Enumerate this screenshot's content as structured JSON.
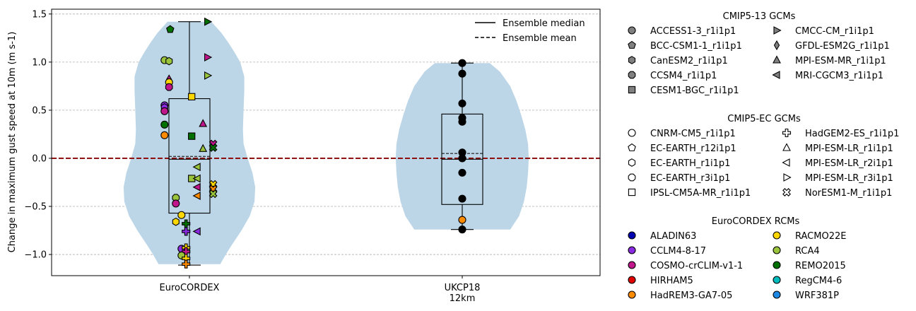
{
  "chart_data": {
    "type": "violin",
    "ylabel": "Change in maximum gust speed at 10m (m s-1)",
    "ylim": [
      -1.22,
      1.55
    ],
    "yticks": [
      -1.0,
      -0.5,
      0.0,
      0.5,
      1.0,
      1.5
    ],
    "ytick_labels": [
      "−1.0",
      "−0.5",
      "0.0",
      "0.5",
      "1.0",
      "1.5"
    ],
    "grid": "y-dashed",
    "reference_line": {
      "y": 0.0,
      "color": "#8b0000",
      "style": "dashed"
    },
    "categories": [
      {
        "label_lines": [
          "EuroCORDEX"
        ]
      },
      {
        "label_lines": [
          "UKCP18",
          "12km"
        ]
      }
    ],
    "legend_top": {
      "placement": "top-right",
      "entries": [
        {
          "label": "Ensemble median",
          "style": "solid"
        },
        {
          "label": "Ensemble mean",
          "style": "dashed"
        }
      ]
    },
    "violin_color": "#bcd6e8",
    "series": [
      {
        "category": "EuroCORDEX",
        "min": -1.11,
        "max": 1.42,
        "q1": -0.57,
        "q3": 0.62,
        "median": -0.01,
        "mean": 0.02,
        "violin_profile": [
          [
            -1.1,
            0.45
          ],
          [
            -1.0,
            0.53
          ],
          [
            -0.9,
            0.62
          ],
          [
            -0.75,
            0.76
          ],
          [
            -0.6,
            0.88
          ],
          [
            -0.45,
            0.95
          ],
          [
            -0.3,
            0.96
          ],
          [
            -0.15,
            0.92
          ],
          [
            0.0,
            0.85
          ],
          [
            0.15,
            0.79
          ],
          [
            0.3,
            0.78
          ],
          [
            0.5,
            0.79
          ],
          [
            0.7,
            0.8
          ],
          [
            0.85,
            0.8
          ],
          [
            1.0,
            0.74
          ],
          [
            1.1,
            0.66
          ],
          [
            1.2,
            0.57
          ],
          [
            1.3,
            0.47
          ],
          [
            1.42,
            0.32
          ]
        ],
        "points": [
          {
            "y": 1.34,
            "dx": -0.17,
            "marker": "pentagon",
            "color": "#007000"
          },
          {
            "y": 1.02,
            "dx": -0.22,
            "marker": "circle",
            "color": "#9ac43c"
          },
          {
            "y": 1.01,
            "dx": -0.18,
            "marker": "hexagon",
            "color": "#9ac43c"
          },
          {
            "y": 0.82,
            "dx": -0.18,
            "marker": "thin_diamond",
            "color": "#c0168c"
          },
          {
            "y": 0.79,
            "dx": -0.18,
            "marker": "circle",
            "color": "#ffd700"
          },
          {
            "y": 0.74,
            "dx": -0.18,
            "marker": "octagon",
            "color": "#c0168c"
          },
          {
            "y": 0.55,
            "dx": -0.22,
            "marker": "circle",
            "color": "#8a2be2"
          },
          {
            "y": 0.53,
            "dx": -0.22,
            "marker": "hexagon",
            "color": "#8a2be2"
          },
          {
            "y": 0.49,
            "dx": -0.22,
            "marker": "circle",
            "color": "#c0168c"
          },
          {
            "y": 0.35,
            "dx": -0.22,
            "marker": "circle",
            "color": "#007000"
          },
          {
            "y": 0.24,
            "dx": -0.22,
            "marker": "circle",
            "color": "#ff8c00"
          },
          {
            "y": 0.64,
            "dx": 0.02,
            "marker": "square",
            "color": "#ffd700"
          },
          {
            "y": 0.23,
            "dx": 0.02,
            "marker": "square",
            "color": "#007000"
          },
          {
            "y": -0.21,
            "dx": 0.02,
            "marker": "square",
            "color": "#9ac43c"
          },
          {
            "y": 1.42,
            "dx": 0.16,
            "marker": "tri_right",
            "color": "#007000"
          },
          {
            "y": 1.05,
            "dx": 0.16,
            "marker": "tri_right",
            "color": "#c0168c"
          },
          {
            "y": 0.86,
            "dx": 0.16,
            "marker": "tri_right",
            "color": "#9ac43c"
          },
          {
            "y": 0.36,
            "dx": 0.12,
            "marker": "tri_up",
            "color": "#c0168c"
          },
          {
            "y": 0.1,
            "dx": 0.12,
            "marker": "tri_up",
            "color": "#9ac43c"
          },
          {
            "y": -0.09,
            "dx": 0.07,
            "marker": "tri_left",
            "color": "#9ac43c"
          },
          {
            "y": -0.21,
            "dx": 0.07,
            "marker": "tri_left",
            "color": "#9ac43c"
          },
          {
            "y": -0.3,
            "dx": 0.07,
            "marker": "tri_left",
            "color": "#c0168c"
          },
          {
            "y": -0.39,
            "dx": 0.07,
            "marker": "tri_left",
            "color": "#ff8c00"
          },
          {
            "y": -0.76,
            "dx": 0.07,
            "marker": "tri_left",
            "color": "#8a2be2"
          },
          {
            "y": 0.15,
            "dx": 0.21,
            "marker": "cross",
            "color": "#c0168c"
          },
          {
            "y": 0.11,
            "dx": 0.21,
            "marker": "cross",
            "color": "#007000"
          },
          {
            "y": -0.27,
            "dx": 0.21,
            "marker": "cross",
            "color": "#ffd700"
          },
          {
            "y": -0.32,
            "dx": 0.21,
            "marker": "cross",
            "color": "#ff8c00"
          },
          {
            "y": -0.37,
            "dx": 0.21,
            "marker": "cross",
            "color": "#9ac43c"
          },
          {
            "y": -0.41,
            "dx": -0.12,
            "marker": "octagon",
            "color": "#9ac43c"
          },
          {
            "y": -0.47,
            "dx": -0.12,
            "marker": "circle",
            "color": "#c0168c"
          },
          {
            "y": -0.59,
            "dx": -0.07,
            "marker": "circle",
            "color": "#ffd700"
          },
          {
            "y": -0.66,
            "dx": -0.12,
            "marker": "hexagon",
            "color": "#ffd700"
          },
          {
            "y": -0.68,
            "dx": -0.03,
            "marker": "plus",
            "color": "#007000"
          },
          {
            "y": -0.76,
            "dx": -0.03,
            "marker": "plus",
            "color": "#8a2be2"
          },
          {
            "y": -0.94,
            "dx": -0.07,
            "marker": "circle",
            "color": "#8a2be2"
          },
          {
            "y": -0.93,
            "dx": -0.03,
            "marker": "plus",
            "color": "#ffd700"
          },
          {
            "y": -0.97,
            "dx": -0.03,
            "marker": "plus",
            "color": "#c0168c"
          },
          {
            "y": -1.01,
            "dx": -0.07,
            "marker": "circle",
            "color": "#9ac43c"
          },
          {
            "y": -1.04,
            "dx": -0.03,
            "marker": "plus",
            "color": "#ffd700"
          },
          {
            "y": -1.1,
            "dx": -0.03,
            "marker": "plus",
            "color": "#ff8c00"
          }
        ]
      },
      {
        "category": "UKCP18 12km",
        "min": -0.74,
        "max": 0.99,
        "q1": -0.48,
        "q3": 0.46,
        "median": -0.01,
        "mean": 0.05,
        "violin_profile": [
          [
            -0.74,
            0.7
          ],
          [
            -0.6,
            0.83
          ],
          [
            -0.45,
            0.9
          ],
          [
            -0.3,
            0.94
          ],
          [
            -0.15,
            0.96
          ],
          [
            0.0,
            0.97
          ],
          [
            0.15,
            0.96
          ],
          [
            0.3,
            0.92
          ],
          [
            0.45,
            0.86
          ],
          [
            0.6,
            0.79
          ],
          [
            0.75,
            0.7
          ],
          [
            0.9,
            0.55
          ],
          [
            0.99,
            0.4
          ]
        ],
        "points": [
          {
            "y": 0.99,
            "dx": 0,
            "marker": "circle",
            "color": "#000000"
          },
          {
            "y": 0.88,
            "dx": 0,
            "marker": "circle",
            "color": "#000000"
          },
          {
            "y": 0.57,
            "dx": 0,
            "marker": "circle",
            "color": "#000000"
          },
          {
            "y": 0.42,
            "dx": 0,
            "marker": "circle",
            "color": "#000000"
          },
          {
            "y": 0.38,
            "dx": 0,
            "marker": "circle",
            "color": "#000000"
          },
          {
            "y": 0.06,
            "dx": 0,
            "marker": "circle",
            "color": "#000000"
          },
          {
            "y": 0.0,
            "dx": 0,
            "marker": "circle",
            "color": "#000000"
          },
          {
            "y": -0.15,
            "dx": 0,
            "marker": "circle",
            "color": "#000000"
          },
          {
            "y": -0.42,
            "dx": 0,
            "marker": "circle",
            "color": "#000000"
          },
          {
            "y": -0.64,
            "dx": 0,
            "marker": "circle",
            "color": "#ff8c00"
          },
          {
            "y": -0.74,
            "dx": 0,
            "marker": "circle",
            "color": "#000000"
          }
        ]
      }
    ],
    "legend_groups": [
      {
        "title": "CMIP5-13 GCMs",
        "marker_fill": "#808080",
        "entries": [
          {
            "label": "ACCESS1-3_r1i1p1",
            "marker": "circle"
          },
          {
            "label": "BCC-CSM1-1_r1i1p1",
            "marker": "pentagon"
          },
          {
            "label": "CanESM2_r1i1p1",
            "marker": "hexagon"
          },
          {
            "label": "CCSM4_r1i1p1",
            "marker": "octagon"
          },
          {
            "label": "CESM1-BGC_r1i1p1",
            "marker": "square"
          },
          {
            "label": "CMCC-CM_r1i1p1",
            "marker": "tri_right"
          },
          {
            "label": "GFDL-ESM2G_r1i1p1",
            "marker": "thin_diamond"
          },
          {
            "label": "MPI-ESM-MR_r1i1p1",
            "marker": "tri_up"
          },
          {
            "label": "MRI-CGCM3_r1i1p1",
            "marker": "tri_left"
          }
        ]
      },
      {
        "title": "CMIP5-EC GCMs",
        "marker_fill": "#ffffff",
        "entries": [
          {
            "label": "CNRM-CM5_r1i1p1",
            "marker": "circle"
          },
          {
            "label": "EC-EARTH_r12i1p1",
            "marker": "pentagon"
          },
          {
            "label": "EC-EARTH_r1i1p1",
            "marker": "hexagon"
          },
          {
            "label": "EC-EARTH_r3i1p1",
            "marker": "octagon"
          },
          {
            "label": "IPSL-CM5A-MR_r1i1p1",
            "marker": "square"
          },
          {
            "label": "HadGEM2-ES_r1i1p1",
            "marker": "plus"
          },
          {
            "label": "MPI-ESM-LR_r1i1p1",
            "marker": "tri_up"
          },
          {
            "label": "MPI-ESM-LR_r2i1p1",
            "marker": "tri_left"
          },
          {
            "label": "MPI-ESM-LR_r3i1p1",
            "marker": "tri_right"
          },
          {
            "label": "NorESM1-M_r1i1p1",
            "marker": "cross"
          }
        ]
      },
      {
        "title": "EuroCORDEX RCMs",
        "entries": [
          {
            "label": "ALADIN63",
            "marker": "circle",
            "color": "#0000b0"
          },
          {
            "label": "CCLM4-8-17",
            "marker": "circle",
            "color": "#8a2be2"
          },
          {
            "label": "COSMO-crCLIM-v1-1",
            "marker": "circle",
            "color": "#c0168c"
          },
          {
            "label": "HIRHAM5",
            "marker": "circle",
            "color": "#e00000"
          },
          {
            "label": "HadREM3-GA7-05",
            "marker": "circle",
            "color": "#ff8c00"
          },
          {
            "label": "RACMO22E",
            "marker": "circle",
            "color": "#ffd700"
          },
          {
            "label": "RCA4",
            "marker": "circle",
            "color": "#9ac43c"
          },
          {
            "label": "REMO2015",
            "marker": "circle",
            "color": "#007000"
          },
          {
            "label": "RegCM4-6",
            "marker": "circle",
            "color": "#00bcbc"
          },
          {
            "label": "WRF381P",
            "marker": "circle",
            "color": "#1e88e5"
          }
        ]
      }
    ]
  }
}
